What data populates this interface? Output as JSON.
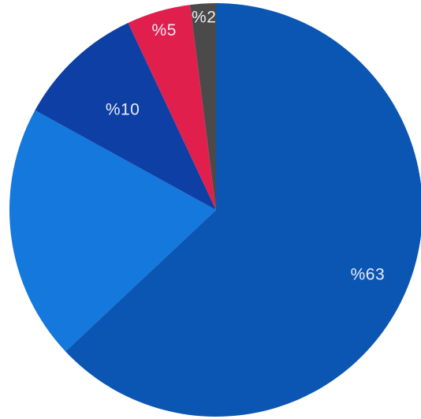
{
  "chart_data": {
    "type": "pie",
    "title": "",
    "slices": [
      {
        "value": 63,
        "label": "%63",
        "color": "#0c56b3"
      },
      {
        "value": 20,
        "label": "",
        "color": "#1478dc"
      },
      {
        "value": 10,
        "label": "%10",
        "color": "#0e3fa4"
      },
      {
        "value": 5,
        "label": "%5",
        "color": "#e01f4d"
      },
      {
        "value": 2,
        "label": "%2",
        "color": "#4a4a4a"
      }
    ],
    "start_angle_deg": 0,
    "direction": "clockwise",
    "legend": "none"
  }
}
